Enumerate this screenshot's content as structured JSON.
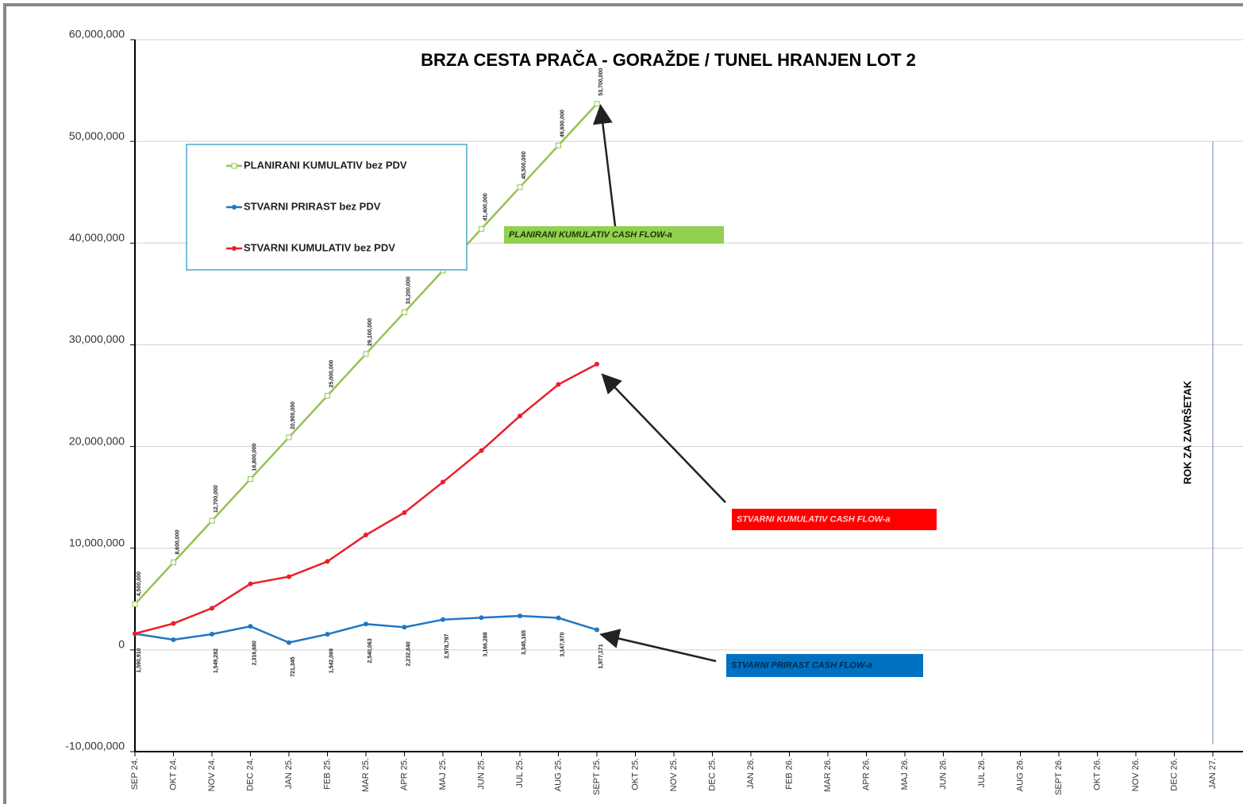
{
  "chart_data": {
    "type": "line",
    "title": "BRZA CESTA PRAČA - GORAŽDE / TUNEL HRANJEN LOT 2",
    "categories": [
      "SEP 24.",
      "OKT 24.",
      "NOV 24.",
      "DEC 24.",
      "JAN 25.",
      "FEB 25.",
      "MAR 25.",
      "APR 25.",
      "MAJ 25.",
      "JUN 25.",
      "JUL 25.",
      "AUG 25.",
      "SEPT 25.",
      "OKT 25.",
      "NOV 25.",
      "DEC 25.",
      "JAN 26.",
      "FEB 26.",
      "MAR 26.",
      "APR 26.",
      "MAJ 26.",
      "JUN 26.",
      "JUL 26.",
      "AUG 26.",
      "SEPT 26.",
      "OKT 26.",
      "NOV 26.",
      "DEC 26.",
      "JAN 27."
    ],
    "series": [
      {
        "name": "PLANIRANI KUMULATIV bez PDV",
        "color": "#92c353",
        "marker": "square",
        "values": [
          4500000,
          8600000,
          12700000,
          16800000,
          20900000,
          25000000,
          29100000,
          33200000,
          37300000,
          41400000,
          45500000,
          49600000,
          53700000,
          null,
          null,
          null,
          null,
          null,
          null,
          null,
          null,
          null,
          null,
          null,
          null,
          null,
          null,
          null,
          null
        ],
        "value_labels": [
          "4,500,000",
          "8,600,000",
          "12,700,000",
          "16,800,000",
          "20,900,000",
          "25,000,000",
          "29,100,000",
          "33,200,000",
          null,
          "41,400,000",
          "45,500,000",
          "49,600,000",
          "53,700,000",
          null,
          null,
          null,
          null,
          null,
          null,
          null,
          null,
          null,
          null,
          null,
          null,
          null,
          null,
          null,
          null
        ]
      },
      {
        "name": "STVARNI PRIRAST bez PDV",
        "color": "#1f77c4",
        "marker": "dot",
        "values": [
          1590910,
          1000000,
          1549282,
          2316680,
          721345,
          1542069,
          2540063,
          2232840,
          2978797,
          3166288,
          3345165,
          3147970,
          1977171,
          null,
          null,
          null,
          null,
          null,
          null,
          null,
          null,
          null,
          null,
          null,
          null,
          null,
          null,
          null,
          null
        ],
        "value_labels": [
          "1,590,910",
          null,
          "1,549,282",
          "2,316,680",
          "721,345",
          "1,542,069",
          "2,540,063",
          "2,232,840",
          "2,978,797",
          "3,166,288",
          "3,345,165",
          "3,147,970",
          "1,977,171",
          null,
          null,
          null,
          null,
          null,
          null,
          null,
          null,
          null,
          null,
          null,
          null,
          null,
          null,
          null,
          null
        ]
      },
      {
        "name": "STVARNI KUMULATIV bez PDV",
        "color": "#e8202a",
        "marker": "dot",
        "values": [
          1600000,
          2600000,
          4100000,
          6500000,
          7200000,
          8700000,
          11300000,
          13500000,
          16500000,
          19600000,
          23000000,
          26100000,
          28100000,
          null,
          null,
          null,
          null,
          null,
          null,
          null,
          null,
          null,
          null,
          null,
          null,
          null,
          null,
          null,
          null
        ]
      }
    ],
    "ylim": [
      -10000000,
      60000000
    ],
    "yticks": [
      {
        "value": -10000000,
        "label": "-10,000,000"
      },
      0,
      {
        "value": 10000000,
        "label": "10,000,000"
      },
      {
        "value": 20000000,
        "label": "20,000,000"
      },
      {
        "value": 30000000,
        "label": "30,000,000"
      },
      {
        "value": 40000000,
        "label": "40,000,000"
      },
      {
        "value": 50000000,
        "label": "50,000,000"
      },
      {
        "value": 60000000,
        "label": "60,000,000"
      }
    ],
    "grid": true,
    "annotations": [
      {
        "text": "PLANIRANI KUMULATIV CASH FLOW-a",
        "color": "#92d050",
        "text_color": "#1a3a00"
      },
      {
        "text": "STVARNI KUMULATIV CASH FLOW-a",
        "color": "#ff0000",
        "text_color": "#ffd0d0"
      },
      {
        "text": "STVARNI PRIRAST CASH FLOW-a",
        "color": "#0070c0",
        "text_color": "#002a50"
      }
    ],
    "deadline_label": "ROK ZA ZAVRŠETAK"
  }
}
